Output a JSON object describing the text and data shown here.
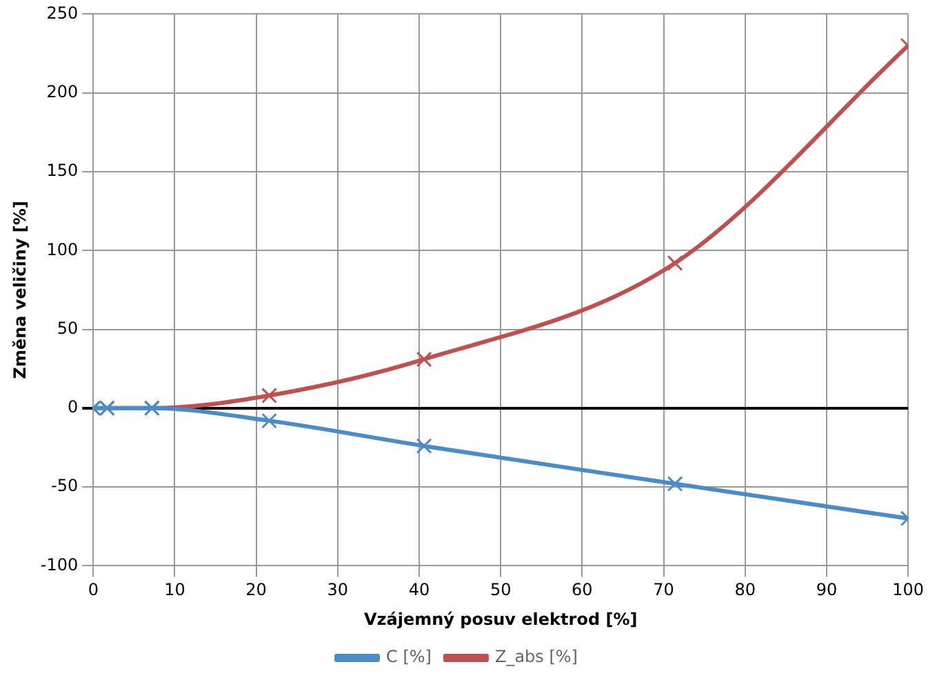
{
  "chart_data": {
    "type": "line",
    "xlabel": "Vzájemný posuv elektrod [%]",
    "ylabel": "Změna veličiny [%]",
    "xlim": [
      0,
      100
    ],
    "xticks": [
      0,
      10,
      20,
      30,
      40,
      50,
      60,
      70,
      80,
      90,
      100
    ],
    "ylim": [
      -100,
      250
    ],
    "yticks": [
      -100,
      -50,
      0,
      50,
      100,
      150,
      200,
      250
    ],
    "series": [
      {
        "name": "C [%]",
        "color": "#4a8cc8",
        "x": [
          0,
          1.7,
          7.2,
          21.6,
          40.6,
          71.4,
          100
        ],
        "values": [
          0,
          0,
          0,
          -8,
          -24,
          -48,
          -70
        ]
      },
      {
        "name": "Z_abs [%]",
        "color": "#c0504d",
        "x": [
          0,
          1.7,
          7.2,
          21.6,
          40.6,
          71.4,
          100
        ],
        "values": [
          0,
          0,
          0,
          8,
          31,
          92,
          230
        ]
      }
    ],
    "grid": true,
    "legend": "bottom",
    "marker": "cross",
    "line_style": "solid"
  }
}
